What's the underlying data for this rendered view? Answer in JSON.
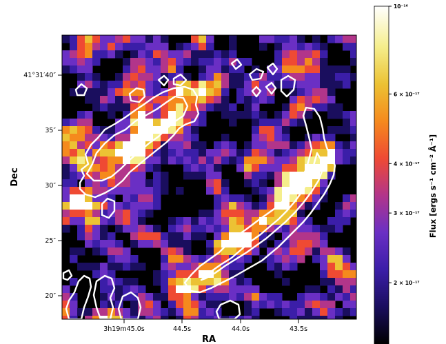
{
  "chart_data": {
    "type": "heatmap",
    "xlabel": "RA",
    "ylabel": "Dec",
    "colorbar_label": "Flux [ergs s⁻¹ cm⁻² Å⁻¹]",
    "colormap": [
      "#000000",
      "#1a0e5e",
      "#3b1ea8",
      "#6a2fc4",
      "#b2358a",
      "#ef4a33",
      "#f58a1d",
      "#ecc234",
      "#f5ee8c",
      "#ffffff"
    ],
    "contour_color": "#ffffff",
    "ra_ticks": [
      "3h19m45.0s",
      "44.5s",
      "44.0s",
      "43.5s"
    ],
    "dec_ticks": [
      "41°31′40″",
      "35″",
      "30″",
      "25″",
      "20″"
    ],
    "colorbar_ticks": [
      {
        "value": 1e-16,
        "label": "10⁻¹⁶"
      },
      {
        "value": 6e-17,
        "label": "6 × 10⁻¹⁷"
      },
      {
        "value": 4e-17,
        "label": "4 × 10⁻¹⁷"
      },
      {
        "value": 3e-17,
        "label": "3 × 10⁻¹⁷"
      },
      {
        "value": 2e-17,
        "label": "2 × 10⁻¹⁷"
      }
    ],
    "colorbar_scale": "log",
    "colorbar_range": [
      1.4e-17,
      1e-16
    ]
  }
}
